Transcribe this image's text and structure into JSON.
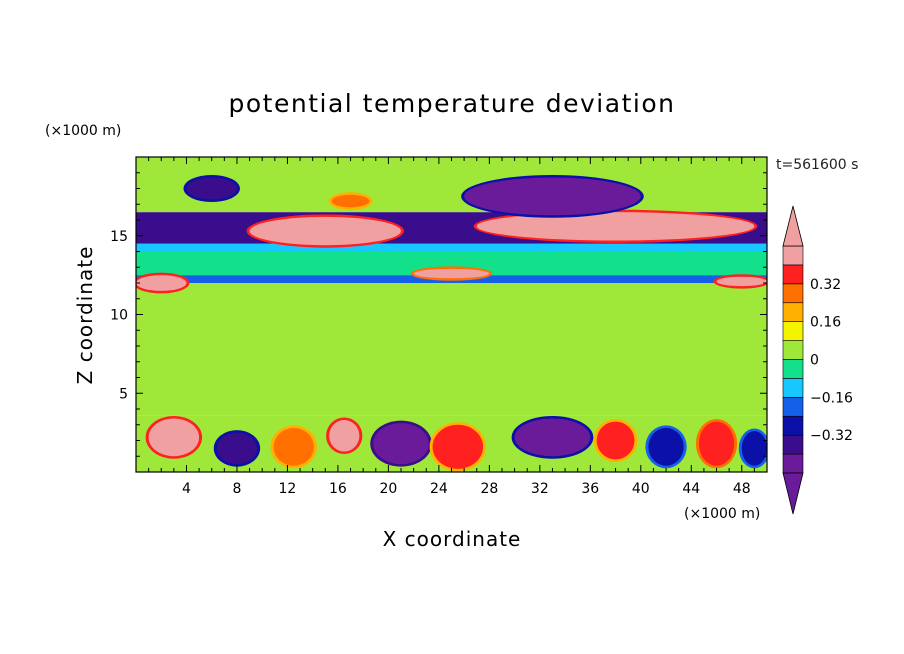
{
  "chart_data": {
    "type": "heatmap",
    "title": "potential temperature deviation",
    "xlabel": "X coordinate",
    "ylabel": "Z coordinate",
    "x_unit": "(×1000 m)",
    "y_unit": "(×1000 m)",
    "time_label": "t=561600 s",
    "xlim": [
      0,
      50
    ],
    "ylim": [
      0,
      20
    ],
    "x_ticks": [
      4,
      8,
      12,
      16,
      20,
      24,
      28,
      32,
      36,
      40,
      44,
      48
    ],
    "y_ticks": [
      5,
      10,
      15
    ],
    "colorbar": {
      "levels": [
        -0.48,
        -0.4,
        -0.32,
        -0.24,
        -0.16,
        -0.08,
        0,
        0.08,
        0.16,
        0.24,
        0.32,
        0.4,
        0.48
      ],
      "colors": [
        "#6a1b9a",
        "#3a0d8c",
        "#0a10a8",
        "#1560e8",
        "#16c8ff",
        "#12e08a",
        "#9fe83a",
        "#f4f400",
        "#ffb000",
        "#ff7000",
        "#ff2020",
        "#f0a0a0"
      ],
      "below_color": "#6a1b9a",
      "above_color": "#f0a0a0",
      "labels": [
        "0.32",
        "0.16",
        "0",
        "−0.16",
        "−0.32"
      ],
      "label_values": [
        0.32,
        0.16,
        0,
        -0.16,
        -0.32
      ]
    },
    "bands": [
      {
        "z0": 0,
        "z1": 3.6,
        "value": 0.0
      },
      {
        "z0": 3.6,
        "z1": 8.0,
        "value": 0.04
      },
      {
        "z0": 8.0,
        "z1": 12.0,
        "value": 0.0
      },
      {
        "z0": 12.0,
        "z1": 12.5,
        "value": -0.2
      },
      {
        "z0": 12.5,
        "z1": 14.0,
        "value": -0.05
      },
      {
        "z0": 14.0,
        "z1": 14.5,
        "value": -0.1
      },
      {
        "z0": 14.5,
        "z1": 16.5,
        "value": -0.4
      },
      {
        "z0": 16.5,
        "z1": 20.0,
        "value": 0.04
      }
    ],
    "features": [
      {
        "x": 15,
        "z": 15.3,
        "rx": 6,
        "rz": 0.9,
        "value": 0.44
      },
      {
        "x": 38,
        "z": 15.6,
        "rx": 11,
        "rz": 0.9,
        "value": 0.44
      },
      {
        "x": 6,
        "z": 18.0,
        "rx": 2,
        "rz": 0.7,
        "value": -0.34
      },
      {
        "x": 33,
        "z": 17.5,
        "rx": 7,
        "rz": 1.2,
        "value": -0.42
      },
      {
        "x": 17,
        "z": 17.2,
        "rx": 1.5,
        "rz": 0.4,
        "value": 0.3
      },
      {
        "x": 2,
        "z": 12.0,
        "rx": 2,
        "rz": 0.5,
        "value": 0.44
      },
      {
        "x": 25,
        "z": 12.6,
        "rx": 3,
        "rz": 0.3,
        "value": 0.4
      },
      {
        "x": 48,
        "z": 12.1,
        "rx": 2,
        "rz": 0.3,
        "value": 0.44
      },
      {
        "x": 3,
        "z": 2.2,
        "rx": 2,
        "rz": 1.2,
        "value": 0.44
      },
      {
        "x": 8,
        "z": 1.5,
        "rx": 1.6,
        "rz": 1.0,
        "value": -0.34
      },
      {
        "x": 12.5,
        "z": 1.6,
        "rx": 1.6,
        "rz": 1.2,
        "value": 0.3
      },
      {
        "x": 16.5,
        "z": 2.3,
        "rx": 1.2,
        "rz": 1.0,
        "value": 0.44
      },
      {
        "x": 21,
        "z": 1.8,
        "rx": 2.2,
        "rz": 1.3,
        "value": -0.45
      },
      {
        "x": 25.5,
        "z": 1.6,
        "rx": 2,
        "rz": 1.4,
        "value": 0.35
      },
      {
        "x": 33,
        "z": 2.2,
        "rx": 3,
        "rz": 1.2,
        "value": -0.42
      },
      {
        "x": 38,
        "z": 2.0,
        "rx": 1.5,
        "rz": 1.2,
        "value": 0.32
      },
      {
        "x": 42,
        "z": 1.6,
        "rx": 1.4,
        "rz": 1.2,
        "value": -0.3
      },
      {
        "x": 46,
        "z": 1.8,
        "rx": 1.4,
        "rz": 1.4,
        "value": 0.38
      },
      {
        "x": 49,
        "z": 1.5,
        "rx": 1,
        "rz": 1.1,
        "value": -0.3
      }
    ]
  }
}
